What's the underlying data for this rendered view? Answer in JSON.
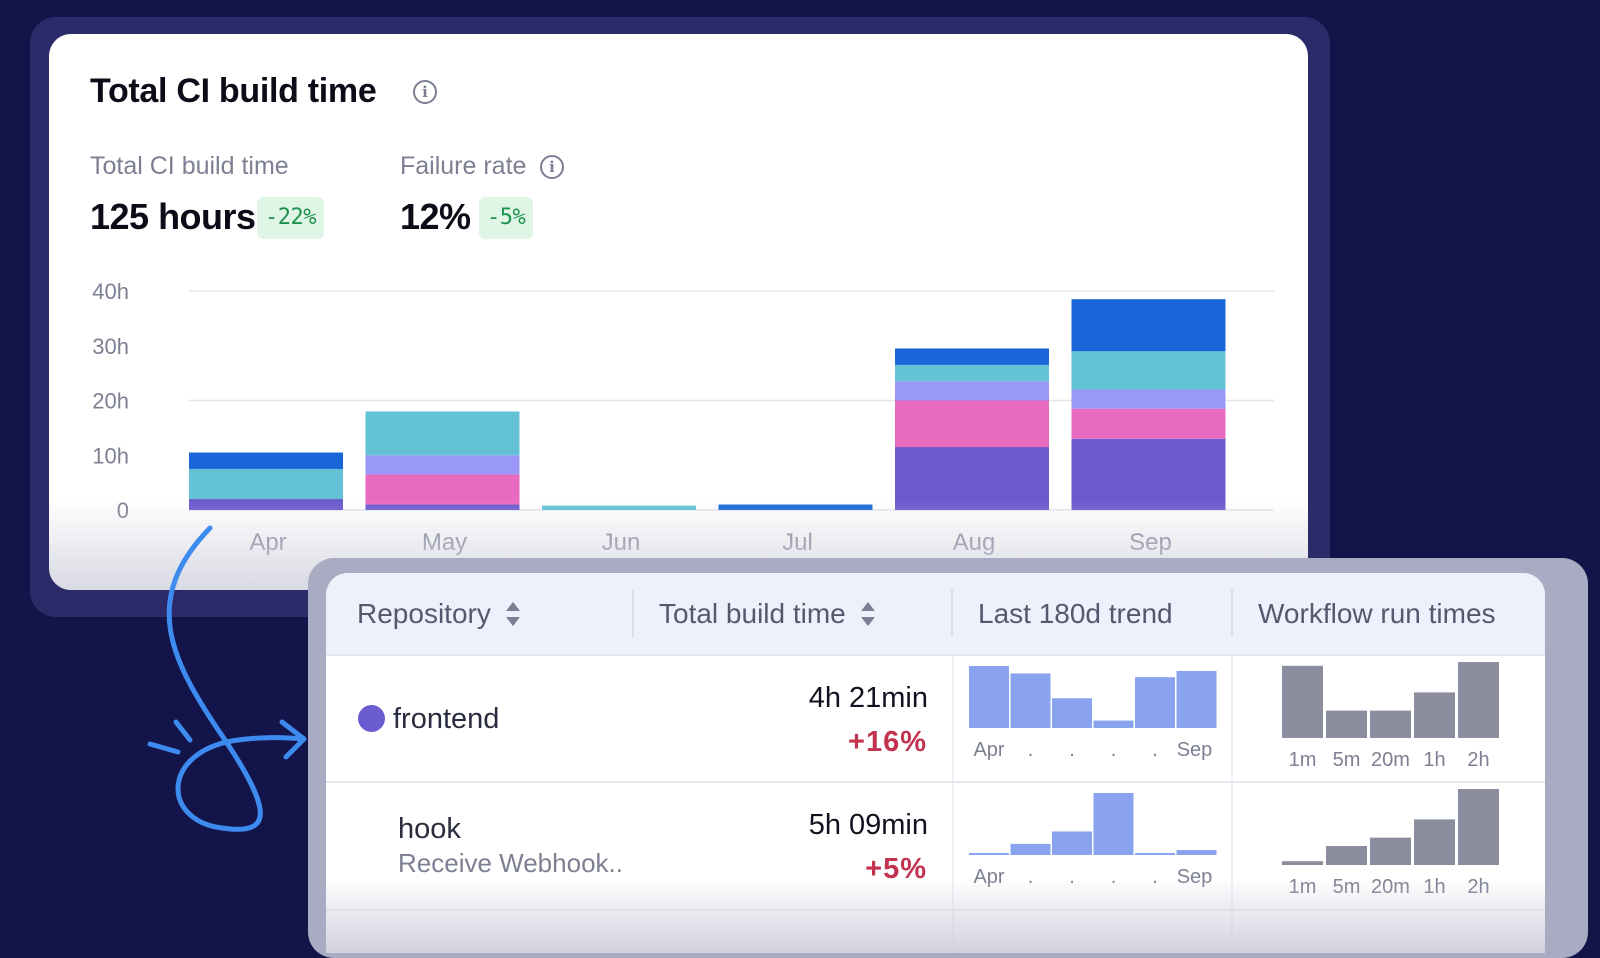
{
  "card": {
    "title": "Total CI build time",
    "metrics": [
      {
        "label": "Total CI build time",
        "value": "125 hours",
        "delta": "-22%"
      },
      {
        "label": "Failure rate",
        "value": "12%",
        "delta": "-5%"
      }
    ]
  },
  "chart_data": {
    "type": "bar",
    "stacked": true,
    "title": "",
    "xlabel": "",
    "ylabel": "",
    "categories": [
      "Apr",
      "May",
      "Jun",
      "Jul",
      "Aug",
      "Sep"
    ],
    "y_ticks": [
      "40h",
      "30h",
      "20h",
      "10h",
      "0"
    ],
    "ylim": [
      0,
      40
    ],
    "grid": true,
    "series": [
      {
        "color": "#6a5acd",
        "values": [
          2,
          1,
          0,
          0,
          11.5,
          13
        ]
      },
      {
        "color": "#e86abf",
        "values": [
          0,
          5.5,
          0,
          0,
          8.5,
          5.5
        ]
      },
      {
        "color": "#9997f8",
        "values": [
          0,
          3.5,
          0,
          0,
          3.5,
          3.5
        ]
      },
      {
        "color": "#63c2d6",
        "values": [
          5.5,
          8,
          0.8,
          0,
          3,
          7
        ]
      },
      {
        "color": "#1a66d8",
        "values": [
          3,
          0,
          0,
          1,
          3,
          9.5
        ]
      }
    ]
  },
  "table": {
    "headers": [
      "Repository",
      "Total build time",
      "Last 180d trend",
      "Workflow run times"
    ],
    "rows": [
      {
        "name": "frontend",
        "subtitle": "",
        "dot_color": "#6b5bd0",
        "time": "4h 21min",
        "delta": "+16%",
        "trend": [
          1.0,
          0.88,
          0.48,
          0.12,
          0.82,
          0.92
        ],
        "trend_labels": [
          "Apr",
          ".",
          ".",
          ".",
          ".",
          "Sep"
        ],
        "runs": [
          0.95,
          0.36,
          0.36,
          0.6,
          1.0
        ],
        "run_labels": [
          "1m",
          "5m",
          "20m",
          "1h",
          "2h"
        ]
      },
      {
        "name": "hook",
        "subtitle": "Receive Webhook..",
        "dot_color": "",
        "time": "5h 09min",
        "delta": "+5%",
        "trend": [
          0.02,
          0.18,
          0.38,
          1.0,
          0.02,
          0.08
        ],
        "trend_labels": [
          "Apr",
          ".",
          ".",
          ".",
          ".",
          "Sep"
        ],
        "runs": [
          0.05,
          0.25,
          0.36,
          0.6,
          1.0
        ],
        "run_labels": [
          "1m",
          "5m",
          "20m",
          "1h",
          "2h"
        ]
      }
    ]
  },
  "colors": {
    "background": "#13154a",
    "trend_bar": "#8aa3ee",
    "run_bar": "#8a8d9d",
    "arrow": "#3e8bf0"
  }
}
